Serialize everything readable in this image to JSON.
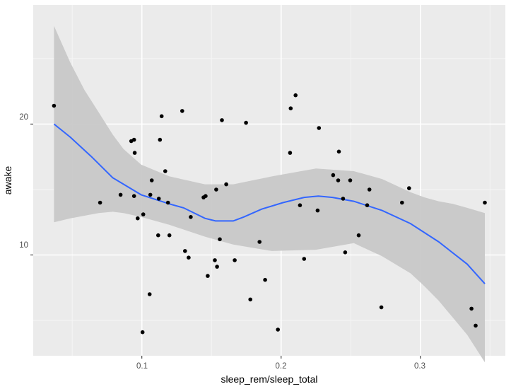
{
  "chart_data": {
    "type": "scatter",
    "title": "",
    "xlabel": "sleep_rem/sleep_total",
    "ylabel": "awake",
    "xlim": [
      0.022,
      0.361
    ],
    "ylim": [
      2.3,
      29.1
    ],
    "x_ticks": [
      0.1,
      0.2,
      0.3
    ],
    "x_tick_labels": [
      "0.1",
      "0.2",
      "0.3"
    ],
    "y_ticks": [
      10,
      20
    ],
    "y_tick_labels": [
      "10",
      "20"
    ],
    "x_minor_grid": [
      0.05,
      0.15,
      0.25,
      0.35
    ],
    "y_minor_grid": [
      5,
      15,
      25
    ],
    "grid": true,
    "legend": null,
    "colors": {
      "panel_background": "#ebebeb",
      "grid_major": "#ffffff",
      "grid_minor": "#f5f5f5",
      "point": "#000000",
      "smooth_line": "#3366ff",
      "ribbon": "#c8c8c8"
    },
    "series": [
      {
        "name": "points",
        "type": "scatter",
        "x": [
          0.0369,
          0.1142,
          0.129,
          0.0924,
          0.0944,
          0.113,
          0.0949,
          0.1168,
          0.1071,
          0.0847,
          0.07,
          0.0944,
          0.1061,
          0.1122,
          0.1188,
          0.101,
          0.097,
          0.1117,
          0.1198,
          0.131,
          0.1336,
          0.1524,
          0.1667,
          0.154,
          0.1473,
          0.1056,
          0.1005,
          0.1575,
          0.1748,
          0.2104,
          0.2069,
          0.2064,
          0.2272,
          0.2415,
          0.1534,
          0.1606,
          0.1443,
          0.1458,
          0.1351,
          0.2135,
          0.2262,
          0.2374,
          0.241,
          0.2496,
          0.2445,
          0.2634,
          0.2618,
          0.2919,
          0.2868,
          0.3463,
          0.156,
          0.1845,
          0.2557,
          0.246,
          0.2165,
          0.1885,
          0.1779,
          0.1977,
          0.272,
          0.3367,
          0.3397
        ],
        "y": [
          21.4,
          20.6,
          21.0,
          18.7,
          18.8,
          18.8,
          17.8,
          16.4,
          15.7,
          14.6,
          14.0,
          14.5,
          14.6,
          14.3,
          14.0,
          13.1,
          12.8,
          11.5,
          11.5,
          10.3,
          9.8,
          9.6,
          9.6,
          9.1,
          8.4,
          7.0,
          4.1,
          20.3,
          20.1,
          22.2,
          21.2,
          17.8,
          19.7,
          17.9,
          15.0,
          15.4,
          14.4,
          14.5,
          12.9,
          13.8,
          13.4,
          16.1,
          15.7,
          15.7,
          14.3,
          15.0,
          13.8,
          15.1,
          14.0,
          14.0,
          11.2,
          11.0,
          11.5,
          10.2,
          9.7,
          8.1,
          6.6,
          4.3,
          6.0,
          5.9,
          4.6
        ]
      },
      {
        "name": "loess smooth",
        "type": "line",
        "x": [
          0.0369,
          0.0486,
          0.0639,
          0.0791,
          0.0995,
          0.1198,
          0.13,
          0.1453,
          0.1529,
          0.1656,
          0.1732,
          0.186,
          0.2013,
          0.2165,
          0.2267,
          0.2369,
          0.2522,
          0.2725,
          0.2929,
          0.3132,
          0.3336,
          0.3463
        ],
        "y": [
          20.0,
          19.0,
          17.5,
          15.9,
          14.6,
          13.9,
          13.6,
          12.8,
          12.6,
          12.6,
          12.9,
          13.5,
          14.0,
          14.4,
          14.5,
          14.4,
          14.1,
          13.4,
          12.4,
          11.0,
          9.3,
          7.8
        ]
      },
      {
        "name": "95% confidence band",
        "type": "area",
        "x": [
          0.0369,
          0.0486,
          0.0588,
          0.069,
          0.0791,
          0.0868,
          0.0995,
          0.1198,
          0.1453,
          0.1656,
          0.1934,
          0.225,
          0.2522,
          0.2725,
          0.2929,
          0.303,
          0.3132,
          0.3234,
          0.3336,
          0.3463
        ],
        "ymin": [
          12.5,
          12.8,
          13.0,
          13.2,
          13.3,
          13.2,
          12.9,
          12.3,
          11.4,
          10.8,
          10.3,
          10.4,
          10.9,
          9.9,
          8.6,
          7.6,
          6.5,
          5.2,
          3.9,
          1.8
        ],
        "ymax": [
          27.5,
          24.7,
          22.6,
          20.9,
          19.2,
          18.1,
          16.9,
          16.0,
          15.4,
          15.4,
          16.0,
          16.6,
          16.4,
          15.8,
          14.8,
          14.4,
          14.1,
          13.9,
          13.6,
          13.2
        ]
      }
    ]
  },
  "axes": {
    "x_title": "sleep_rem/sleep_total",
    "y_title": "awake",
    "x_tick_labels": [
      "0.1",
      "0.2",
      "0.3"
    ],
    "y_tick_labels": [
      "10",
      "20"
    ]
  }
}
